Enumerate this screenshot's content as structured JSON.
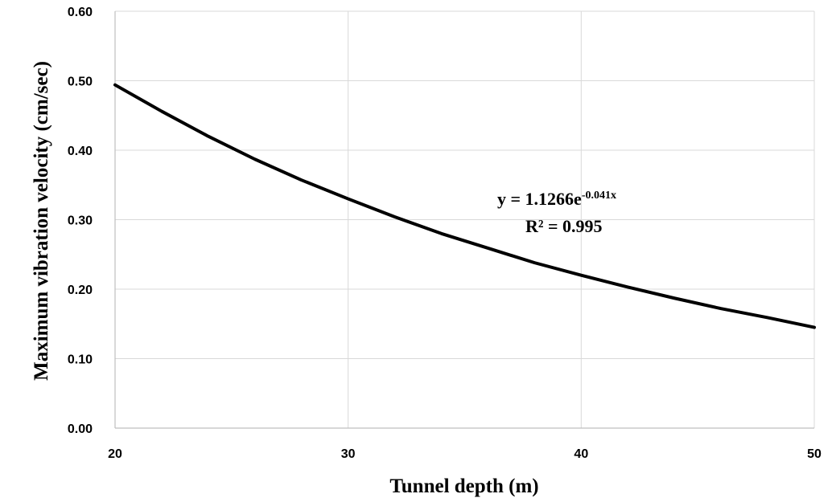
{
  "chart_data": {
    "type": "line",
    "xlabel": "Tunnel depth (m)",
    "ylabel": "Maximum vibration velocity (cm/sec)",
    "xlim": [
      20,
      50
    ],
    "ylim": [
      0,
      0.6
    ],
    "x_ticks": [
      "20",
      "30",
      "40",
      "50"
    ],
    "y_ticks": [
      "0.00",
      "0.10",
      "0.20",
      "0.30",
      "0.40",
      "0.50",
      "0.60"
    ],
    "x_tick_values": [
      20,
      30,
      40,
      50
    ],
    "y_tick_values": [
      0,
      0.1,
      0.2,
      0.3,
      0.4,
      0.5,
      0.6
    ],
    "grid": true,
    "series": [
      {
        "x": [
          20,
          22,
          24,
          26,
          28,
          30,
          32,
          34,
          36,
          38,
          40,
          42,
          44,
          46,
          48,
          50
        ],
        "y": [
          0.494,
          0.456,
          0.42,
          0.387,
          0.357,
          0.33,
          0.304,
          0.28,
          0.259,
          0.238,
          0.22,
          0.203,
          0.187,
          0.172,
          0.159,
          0.145
        ],
        "color": "#000000"
      }
    ],
    "annotations": {
      "equation_base": "y = 1.1266e",
      "equation_exponent": "-0.041x",
      "r_squared": "R² = 0.995"
    }
  }
}
